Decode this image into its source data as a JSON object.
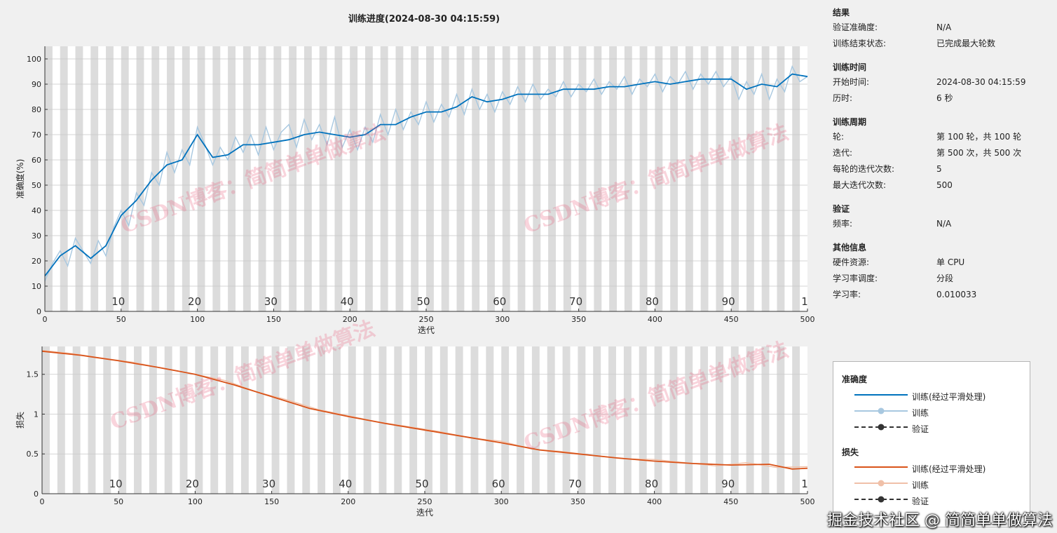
{
  "title": "训练进度(2024-08-30 04:15:59)",
  "results": {
    "sections": [
      {
        "title": "结果",
        "rows": [
          {
            "key": "验证准确度:",
            "value": "N/A"
          },
          {
            "key": "训练结束状态:",
            "value": "已完成最大轮数"
          }
        ]
      },
      {
        "title": "训练时间",
        "rows": [
          {
            "key": "开始时间:",
            "value": "2024-08-30 04:15:59"
          },
          {
            "key": "历时:",
            "value": "6 秒"
          }
        ]
      },
      {
        "title": "训练周期",
        "rows": [
          {
            "key": "轮:",
            "value": "第 100 轮，共 100 轮"
          },
          {
            "key": "迭代:",
            "value": "第 500 次，共 500 次"
          },
          {
            "key": "每轮的迭代次数:",
            "value": "5"
          },
          {
            "key": "最大迭代次数:",
            "value": "500"
          }
        ]
      },
      {
        "title": "验证",
        "rows": [
          {
            "key": "频率:",
            "value": "N/A"
          }
        ]
      },
      {
        "title": "其他信息",
        "rows": [
          {
            "key": "硬件资源:",
            "value": "单 CPU"
          },
          {
            "key": "学习率调度:",
            "value": "分段"
          },
          {
            "key": "学习率:",
            "value": "0.010033"
          }
        ]
      }
    ]
  },
  "legend": {
    "accuracy_title": "准确度",
    "loss_title": "损失",
    "smoothed_label": "训练(经过平滑处理)",
    "train_label": "训练",
    "val_label": "验证"
  },
  "watermark": [
    "CSDN博客：简简单单做算法",
    "CSDN博客：简简单单做算法",
    "CSDN博客：简简单单做算法",
    "CSDN博客：简简单单做算法"
  ],
  "credit": "掘金技术社区 @ 简简单单做算法",
  "colors": {
    "accuracy": "#0072bd",
    "accuracy_raw": "#a8c8e0",
    "loss": "#d95319",
    "loss_raw": "#f0c0a8",
    "band": "#dcdcdc"
  },
  "chart_data": [
    {
      "type": "line",
      "name": "accuracy",
      "ylabel": "准确度(%)",
      "xlabel": "迭代",
      "xlim": [
        0,
        500
      ],
      "ylim": [
        0,
        105
      ],
      "xticks": [
        0,
        50,
        100,
        150,
        200,
        250,
        300,
        350,
        400,
        450,
        500
      ],
      "yticks": [
        0,
        10,
        20,
        30,
        40,
        50,
        60,
        70,
        80,
        90,
        100
      ],
      "epoch_labels": [
        "10",
        "20",
        "30",
        "40",
        "50",
        "60",
        "70",
        "80",
        "90",
        "1"
      ],
      "epoch_label_x": [
        50,
        100,
        150,
        200,
        250,
        300,
        350,
        400,
        450,
        500
      ],
      "smoothed": {
        "x": [
          0,
          10,
          20,
          30,
          40,
          50,
          60,
          70,
          80,
          90,
          100,
          110,
          120,
          130,
          140,
          150,
          160,
          170,
          180,
          190,
          200,
          210,
          220,
          230,
          240,
          250,
          260,
          270,
          280,
          290,
          300,
          310,
          320,
          330,
          340,
          350,
          360,
          370,
          380,
          390,
          400,
          410,
          420,
          430,
          440,
          450,
          460,
          470,
          480,
          490,
          500
        ],
        "y": [
          14,
          22,
          26,
          21,
          26,
          38,
          44,
          52,
          58,
          60,
          70,
          61,
          62,
          66,
          66,
          67,
          68,
          70,
          71,
          70,
          69,
          70,
          74,
          74,
          77,
          79,
          79,
          81,
          85,
          83,
          84,
          86,
          86,
          86,
          88,
          88,
          88,
          89,
          89,
          90,
          91,
          90,
          91,
          92,
          92,
          92,
          88,
          90,
          89,
          94,
          93
        ]
      },
      "raw": {
        "x": [
          0,
          5,
          10,
          15,
          20,
          25,
          30,
          35,
          40,
          45,
          50,
          55,
          60,
          65,
          70,
          75,
          80,
          85,
          90,
          95,
          100,
          105,
          110,
          115,
          120,
          125,
          130,
          135,
          140,
          145,
          150,
          155,
          160,
          165,
          170,
          175,
          180,
          185,
          190,
          195,
          200,
          205,
          210,
          215,
          220,
          225,
          230,
          235,
          240,
          245,
          250,
          255,
          260,
          265,
          270,
          275,
          280,
          285,
          290,
          295,
          300,
          305,
          310,
          315,
          320,
          325,
          330,
          335,
          340,
          345,
          350,
          355,
          360,
          365,
          370,
          375,
          380,
          385,
          390,
          395,
          400,
          405,
          410,
          415,
          420,
          425,
          430,
          435,
          440,
          445,
          450,
          455,
          460,
          465,
          470,
          475,
          480,
          485,
          490,
          495,
          500
        ],
        "y": [
          12,
          19,
          24,
          18,
          29,
          24,
          19,
          28,
          22,
          33,
          40,
          34,
          47,
          42,
          55,
          50,
          63,
          55,
          64,
          58,
          73,
          66,
          58,
          65,
          60,
          69,
          63,
          70,
          62,
          73,
          64,
          71,
          74,
          65,
          76,
          68,
          74,
          66,
          77,
          65,
          72,
          64,
          73,
          67,
          78,
          70,
          80,
          72,
          79,
          74,
          83,
          75,
          82,
          77,
          86,
          78,
          88,
          80,
          86,
          79,
          87,
          82,
          89,
          83,
          90,
          84,
          88,
          85,
          91,
          85,
          90,
          87,
          92,
          86,
          91,
          88,
          93,
          86,
          92,
          89,
          94,
          87,
          93,
          90,
          95,
          88,
          94,
          90,
          95,
          89,
          93,
          84,
          91,
          86,
          94,
          84,
          92,
          87,
          97,
          91,
          93
        ]
      }
    },
    {
      "type": "line",
      "name": "loss",
      "ylabel": "损失",
      "xlabel": "迭代",
      "xlim": [
        0,
        500
      ],
      "ylim": [
        0,
        1.85
      ],
      "xticks": [
        0,
        50,
        100,
        150,
        200,
        250,
        300,
        350,
        400,
        450,
        500
      ],
      "yticks": [
        0,
        0.5,
        1,
        1.5
      ],
      "ytick_labels": [
        "0",
        "0.5",
        "1",
        "1.5"
      ],
      "epoch_labels": [
        "10",
        "20",
        "30",
        "40",
        "50",
        "60",
        "70",
        "80",
        "90",
        "1"
      ],
      "epoch_label_x": [
        50,
        100,
        150,
        200,
        250,
        300,
        350,
        400,
        450,
        500
      ],
      "smoothed": {
        "x": [
          0,
          25,
          50,
          75,
          100,
          125,
          150,
          175,
          200,
          225,
          250,
          275,
          300,
          325,
          350,
          375,
          400,
          425,
          450,
          475,
          490,
          500
        ],
        "y": [
          1.79,
          1.74,
          1.67,
          1.59,
          1.5,
          1.37,
          1.22,
          1.07,
          0.97,
          0.88,
          0.8,
          0.72,
          0.64,
          0.55,
          0.5,
          0.45,
          0.41,
          0.38,
          0.36,
          0.37,
          0.31,
          0.32
        ]
      },
      "raw": {
        "x": [
          0,
          20,
          40,
          60,
          80,
          100,
          120,
          140,
          160,
          180,
          200,
          220,
          240,
          260,
          280,
          300,
          320,
          340,
          360,
          380,
          400,
          420,
          440,
          460,
          480,
          500
        ],
        "y": [
          1.8,
          1.76,
          1.7,
          1.65,
          1.57,
          1.5,
          1.42,
          1.28,
          1.18,
          1.06,
          0.98,
          0.9,
          0.84,
          0.78,
          0.7,
          0.66,
          0.56,
          0.53,
          0.48,
          0.44,
          0.43,
          0.39,
          0.35,
          0.39,
          0.33,
          0.34
        ]
      }
    }
  ]
}
